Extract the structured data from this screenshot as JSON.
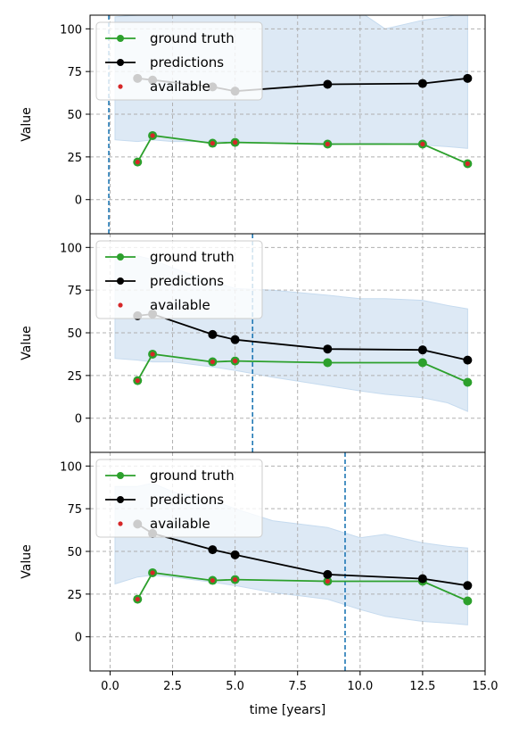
{
  "chart_data": {
    "type": "line",
    "xlabel": "time [years]",
    "ylabel": "Value",
    "xlim": [
      -0.8,
      15.0
    ],
    "ylim": [
      -20,
      108
    ],
    "xticks": [
      0.0,
      2.5,
      5.0,
      7.5,
      10.0,
      12.5,
      15.0
    ],
    "xtick_labels": [
      "0.0",
      "2.5",
      "5.0",
      "7.5",
      "10.0",
      "12.5",
      "15.0"
    ],
    "yticks": [
      0,
      25,
      50,
      75,
      100
    ],
    "ytick_labels": [
      "0",
      "25",
      "50",
      "75",
      "100"
    ],
    "grid": true,
    "legend": {
      "placement": "top-left",
      "entries": [
        "ground truth",
        "predictions",
        "available"
      ]
    },
    "colors": {
      "ground_truth": "#2ca02c",
      "predictions": "#000000",
      "available": "#d62728",
      "band": "#c6dbef",
      "cutoff": "#1f77b4"
    },
    "panels": [
      {
        "cutoff_time": -0.05,
        "ground_truth": {
          "x": [
            1.1,
            1.7,
            4.1,
            5.0,
            8.7,
            12.5,
            14.3
          ],
          "y": [
            22,
            37.5,
            33,
            33.5,
            32.5,
            32.5,
            21
          ]
        },
        "predictions": {
          "x": [
            1.1,
            1.7,
            4.1,
            5.0,
            8.7,
            12.5,
            14.3
          ],
          "y": [
            71,
            70,
            66,
            63.5,
            67.5,
            68,
            71
          ]
        },
        "available": {
          "x": [
            1.1,
            1.7,
            4.1,
            5.0,
            8.7,
            12.5,
            14.3
          ],
          "y": [
            22,
            37.5,
            33,
            33.5,
            32.5,
            32.5,
            21
          ]
        },
        "band": {
          "x": [
            0.2,
            1.1,
            1.7,
            2.5,
            4.1,
            5.0,
            6.5,
            8.7,
            10.0,
            11.0,
            12.5,
            13.5,
            14.3
          ],
          "upper": [
            107,
            108,
            108,
            108,
            108,
            108,
            108,
            108,
            110,
            100,
            105,
            107,
            110
          ],
          "lower": [
            35,
            34,
            35,
            34,
            34,
            34,
            33,
            32,
            33,
            33,
            32,
            31,
            30
          ]
        }
      },
      {
        "cutoff_time": 5.7,
        "ground_truth": {
          "x": [
            1.1,
            1.7,
            4.1,
            5.0,
            8.7,
            12.5,
            14.3
          ],
          "y": [
            22,
            37.5,
            33,
            33.5,
            32.5,
            32.5,
            21
          ]
        },
        "predictions": {
          "x": [
            1.1,
            1.7,
            4.1,
            5.0,
            8.7,
            12.5,
            14.3
          ],
          "y": [
            60,
            61,
            49,
            46,
            40.5,
            40,
            34
          ]
        },
        "available": {
          "x": [
            1.1,
            1.7,
            4.1,
            5.0
          ],
          "y": [
            22,
            37.5,
            33,
            33.5
          ]
        },
        "band": {
          "x": [
            0.2,
            1.1,
            1.7,
            2.5,
            4.1,
            5.0,
            6.5,
            8.7,
            10.0,
            11.0,
            12.5,
            13.5,
            14.3
          ],
          "upper": [
            95,
            95,
            93,
            88,
            80,
            76,
            75,
            72,
            70,
            70,
            69,
            66,
            64
          ],
          "lower": [
            35,
            34,
            33,
            33,
            30,
            28,
            24,
            19,
            16,
            14,
            12,
            9,
            4
          ]
        }
      },
      {
        "cutoff_time": 9.4,
        "ground_truth": {
          "x": [
            1.1,
            1.7,
            4.1,
            5.0,
            8.7,
            12.5,
            14.3
          ],
          "y": [
            22,
            37.5,
            33,
            33.5,
            32.5,
            32.5,
            21
          ]
        },
        "predictions": {
          "x": [
            1.1,
            1.7,
            4.1,
            5.0,
            8.7,
            12.5,
            14.3
          ],
          "y": [
            66,
            60.5,
            51,
            48,
            36.5,
            34,
            30
          ]
        },
        "available": {
          "x": [
            1.1,
            1.7,
            4.1,
            5.0,
            8.7
          ],
          "y": [
            22,
            37.5,
            33,
            33.5,
            32.5
          ]
        },
        "band": {
          "x": [
            0.2,
            1.1,
            1.7,
            2.5,
            4.1,
            5.0,
            6.5,
            8.7,
            10.0,
            11.0,
            12.5,
            13.5,
            14.3
          ],
          "upper": [
            88,
            88,
            90,
            85,
            80,
            75,
            68,
            64,
            58,
            60,
            55,
            53,
            52
          ],
          "lower": [
            31,
            35,
            36,
            35,
            32,
            30,
            26,
            22,
            16,
            12,
            9,
            8,
            7
          ]
        }
      }
    ]
  }
}
